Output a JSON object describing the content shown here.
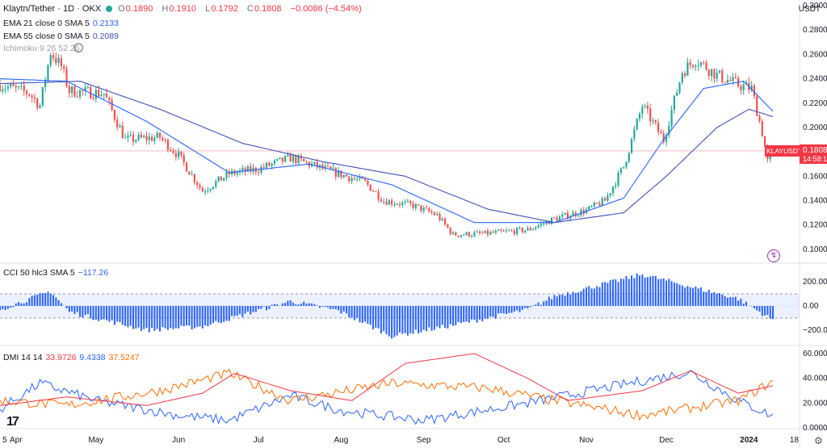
{
  "header": {
    "symbol_title": "Klaytn/Tether · 1D · OKX",
    "ohlc": [
      {
        "k": "O",
        "v": "0.1890"
      },
      {
        "k": "H",
        "v": "0.1910"
      },
      {
        "k": "L",
        "v": "0.1792"
      },
      {
        "k": "C",
        "v": "0.1808"
      }
    ],
    "change": "−0.0086 (−4.54%)",
    "ema21": {
      "label": "EMA 21 close 0 SMA 5",
      "value": "0.2133"
    },
    "ema55": {
      "label": "EMA 55 close 0 SMA 5",
      "value": "0.2089"
    },
    "ichimoku": {
      "label": "Ichimoku 9 26 52 26"
    },
    "cci": {
      "label": "CCI 50 hlc3 SMA 5",
      "value": "−117.26"
    },
    "dmi": {
      "label": "DMI 14 14",
      "values": [
        "33.9726",
        "9.4338",
        "37.5247"
      ]
    }
  },
  "axis": {
    "unit": "USDT",
    "price_ticks": [
      "0.3000",
      "0.2800",
      "0.2600",
      "0.2400",
      "0.2200",
      "0.2000",
      "0.1800",
      "0.1600",
      "0.1400",
      "0.1200",
      "0.1000"
    ],
    "cci_ticks": [
      "200.00",
      "0.00",
      "−200.00"
    ],
    "dmi_ticks": [
      "60.0000",
      "40.0000",
      "20.0000",
      "0.0000"
    ],
    "months": [
      "5",
      "Apr",
      "May",
      "Jun",
      "Jul",
      "Aug",
      "Sep",
      "Oct",
      "Nov",
      "Dec",
      "2024",
      "18"
    ]
  },
  "price_label": {
    "symbol": "KLAYUSDT",
    "price": "0.1808",
    "countdown": "14:58:16"
  },
  "colors": {
    "up": "#26a69a",
    "down": "#ef5350",
    "ema21": "#2962ff",
    "ema55": "#3f51b5",
    "cci_bars": "#2962ff",
    "dmi_plus": "#2962ff",
    "dmi_minus": "#ff6d00",
    "adx": "#f23645",
    "price_label_bg": "#f23645"
  },
  "chart_data": [
    {
      "type": "candlestick",
      "name": "Klaytn/Tether · 1D · OKX",
      "x_range": [
        "2023-03-26",
        "2024-01-20"
      ],
      "ylim": [
        0.09,
        0.3
      ],
      "keypoints": [
        {
          "date": "2023-03-26",
          "close": 0.235
        },
        {
          "date": "2023-04-06",
          "close": 0.228
        },
        {
          "date": "2023-04-10",
          "close": 0.218
        },
        {
          "date": "2023-04-14",
          "close": 0.262
        },
        {
          "date": "2023-04-18",
          "close": 0.25
        },
        {
          "date": "2023-04-21",
          "close": 0.23
        },
        {
          "date": "2023-05-04",
          "close": 0.228
        },
        {
          "date": "2023-05-12",
          "close": 0.19
        },
        {
          "date": "2023-05-25",
          "close": 0.192
        },
        {
          "date": "2023-06-01",
          "close": 0.177
        },
        {
          "date": "2023-06-10",
          "close": 0.148
        },
        {
          "date": "2023-06-20",
          "close": 0.162
        },
        {
          "date": "2023-07-01",
          "close": 0.166
        },
        {
          "date": "2023-07-13",
          "close": 0.175
        },
        {
          "date": "2023-07-20",
          "close": 0.17
        },
        {
          "date": "2023-07-31",
          "close": 0.162
        },
        {
          "date": "2023-08-10",
          "close": 0.155
        },
        {
          "date": "2023-08-17",
          "close": 0.14
        },
        {
          "date": "2023-08-28",
          "close": 0.136
        },
        {
          "date": "2023-09-06",
          "close": 0.128
        },
        {
          "date": "2023-09-12",
          "close": 0.112
        },
        {
          "date": "2023-09-25",
          "close": 0.113
        },
        {
          "date": "2023-10-10",
          "close": 0.116
        },
        {
          "date": "2023-10-20",
          "close": 0.125
        },
        {
          "date": "2023-11-01",
          "close": 0.132
        },
        {
          "date": "2023-11-08",
          "close": 0.14
        },
        {
          "date": "2023-11-15",
          "close": 0.168
        },
        {
          "date": "2023-11-22",
          "close": 0.218
        },
        {
          "date": "2023-11-30",
          "close": 0.19
        },
        {
          "date": "2023-12-07",
          "close": 0.246
        },
        {
          "date": "2023-12-12",
          "close": 0.256
        },
        {
          "date": "2023-12-20",
          "close": 0.243
        },
        {
          "date": "2023-12-28",
          "close": 0.235
        },
        {
          "date": "2024-01-02",
          "close": 0.232
        },
        {
          "date": "2024-01-06",
          "close": 0.196
        },
        {
          "date": "2024-01-08",
          "close": 0.172
        },
        {
          "date": "2024-01-10",
          "close": 0.1808
        }
      ],
      "ema21": [
        {
          "date": "2023-03-26",
          "v": 0.24
        },
        {
          "date": "2023-04-20",
          "v": 0.238
        },
        {
          "date": "2023-05-20",
          "v": 0.205
        },
        {
          "date": "2023-06-20",
          "v": 0.163
        },
        {
          "date": "2023-07-20",
          "v": 0.17
        },
        {
          "date": "2023-08-20",
          "v": 0.153
        },
        {
          "date": "2023-09-20",
          "v": 0.122
        },
        {
          "date": "2023-10-20",
          "v": 0.122
        },
        {
          "date": "2023-11-15",
          "v": 0.142
        },
        {
          "date": "2023-11-30",
          "v": 0.19
        },
        {
          "date": "2023-12-15",
          "v": 0.232
        },
        {
          "date": "2023-12-30",
          "v": 0.238
        },
        {
          "date": "2024-01-10",
          "v": 0.2133
        }
      ],
      "ema55": [
        {
          "date": "2023-03-26",
          "v": 0.236
        },
        {
          "date": "2023-04-25",
          "v": 0.238
        },
        {
          "date": "2023-05-25",
          "v": 0.215
        },
        {
          "date": "2023-06-25",
          "v": 0.187
        },
        {
          "date": "2023-07-25",
          "v": 0.172
        },
        {
          "date": "2023-08-25",
          "v": 0.16
        },
        {
          "date": "2023-09-25",
          "v": 0.133
        },
        {
          "date": "2023-10-20",
          "v": 0.122
        },
        {
          "date": "2023-11-15",
          "v": 0.13
        },
        {
          "date": "2023-12-01",
          "v": 0.16
        },
        {
          "date": "2023-12-20",
          "v": 0.2
        },
        {
          "date": "2024-01-01",
          "v": 0.215
        },
        {
          "date": "2024-01-10",
          "v": 0.2089
        }
      ]
    },
    {
      "type": "bar",
      "name": "CCI 50 hlc3 SMA 5",
      "ylim": [
        -300,
        300
      ],
      "bands": [
        100,
        -100
      ],
      "keypoints": [
        {
          "date": "2023-03-26",
          "v": -30
        },
        {
          "date": "2023-04-14",
          "v": 120
        },
        {
          "date": "2023-04-21",
          "v": -50
        },
        {
          "date": "2023-05-20",
          "v": -200
        },
        {
          "date": "2023-06-10",
          "v": -170
        },
        {
          "date": "2023-07-13",
          "v": 40
        },
        {
          "date": "2023-07-31",
          "v": -40
        },
        {
          "date": "2023-08-20",
          "v": -250
        },
        {
          "date": "2023-09-12",
          "v": -160
        },
        {
          "date": "2023-10-10",
          "v": -30
        },
        {
          "date": "2023-10-20",
          "v": 80
        },
        {
          "date": "2023-11-22",
          "v": 260
        },
        {
          "date": "2023-12-10",
          "v": 160
        },
        {
          "date": "2023-12-28",
          "v": 60
        },
        {
          "date": "2024-01-10",
          "v": -117.26
        }
      ]
    },
    {
      "type": "line",
      "name": "DMI 14 14",
      "ylim": [
        0,
        60
      ],
      "series": [
        {
          "keypoints": [
            {
              "date": "2023-03-26",
              "v": 15
            },
            {
              "date": "2023-04-10",
              "v": 36
            },
            {
              "date": "2023-05-01",
              "v": 22
            },
            {
              "date": "2023-06-01",
              "v": 10
            },
            {
              "date": "2023-06-20",
              "v": 6
            },
            {
              "date": "2023-07-13",
              "v": 26
            },
            {
              "date": "2023-08-01",
              "v": 14
            },
            {
              "date": "2023-09-01",
              "v": 6
            },
            {
              "date": "2023-10-10",
              "v": 20
            },
            {
              "date": "2023-11-22",
              "v": 38
            },
            {
              "date": "2023-12-10",
              "v": 45
            },
            {
              "date": "2023-12-28",
              "v": 22
            },
            {
              "date": "2024-01-10",
              "v": 9.4338
            }
          ]
        },
        {
          "keypoints": [
            {
              "date": "2023-03-26",
              "v": 22
            },
            {
              "date": "2023-04-20",
              "v": 18
            },
            {
              "date": "2023-05-25",
              "v": 30
            },
            {
              "date": "2023-06-20",
              "v": 44
            },
            {
              "date": "2023-07-13",
              "v": 22
            },
            {
              "date": "2023-08-20",
              "v": 36
            },
            {
              "date": "2023-09-25",
              "v": 32
            },
            {
              "date": "2023-10-20",
              "v": 22
            },
            {
              "date": "2023-11-22",
              "v": 10
            },
            {
              "date": "2023-12-10",
              "v": 16
            },
            {
              "date": "2023-12-28",
              "v": 22
            },
            {
              "date": "2024-01-10",
              "v": 37.5247
            }
          ]
        },
        {
          "keypoints": [
            {
              "date": "2023-03-26",
              "v": 18
            },
            {
              "date": "2023-04-20",
              "v": 25
            },
            {
              "date": "2023-05-20",
              "v": 18
            },
            {
              "date": "2023-06-10",
              "v": 28
            },
            {
              "date": "2023-06-22",
              "v": 44
            },
            {
              "date": "2023-07-13",
              "v": 30
            },
            {
              "date": "2023-08-05",
              "v": 22
            },
            {
              "date": "2023-08-25",
              "v": 52
            },
            {
              "date": "2023-09-20",
              "v": 60
            },
            {
              "date": "2023-10-10",
              "v": 40
            },
            {
              "date": "2023-10-25",
              "v": 22
            },
            {
              "date": "2023-11-22",
              "v": 30
            },
            {
              "date": "2023-12-10",
              "v": 46
            },
            {
              "date": "2023-12-28",
              "v": 28
            },
            {
              "date": "2024-01-10",
              "v": 33.9726
            }
          ]
        }
      ]
    }
  ]
}
